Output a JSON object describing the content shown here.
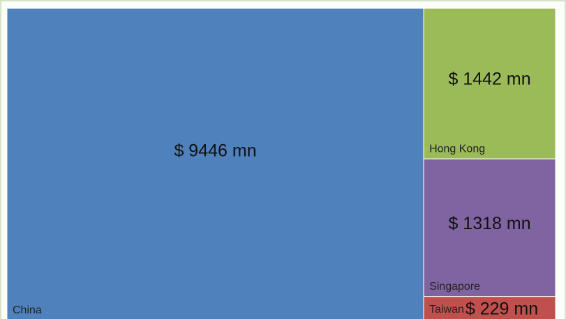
{
  "chart_data": {
    "type": "treemap",
    "categories": [
      "China",
      "Hong Kong",
      "Singapore",
      "Taiwan"
    ],
    "values": [
      9446,
      1442,
      1318,
      229
    ],
    "value_labels": [
      "$ 9446 mn",
      "$ 1442 mn",
      "$ 1318 mn",
      "$ 229 mn"
    ],
    "colors": [
      "#4f81bd",
      "#9bbb59",
      "#8064a2",
      "#c0504d"
    ]
  }
}
